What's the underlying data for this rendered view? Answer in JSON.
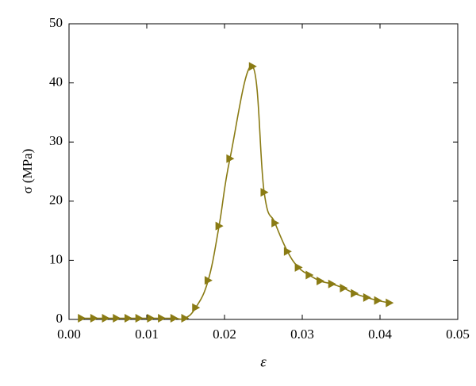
{
  "chart_data": {
    "type": "line",
    "xlabel": "ε",
    "ylabel": "σ (MPa)",
    "x": [
      0.0016,
      0.0032,
      0.0047,
      0.0061,
      0.0076,
      0.009,
      0.0105,
      0.0119,
      0.0135,
      0.0149,
      0.0163,
      0.0179,
      0.0193,
      0.0207,
      0.0236,
      0.0251,
      0.0265,
      0.0281,
      0.0295,
      0.0309,
      0.0323,
      0.0338,
      0.0353,
      0.0367,
      0.0383,
      0.0397,
      0.0412
    ],
    "series": [
      {
        "color": "#8a7b14",
        "values": [
          0.2,
          0.2,
          0.2,
          0.2,
          0.2,
          0.2,
          0.2,
          0.2,
          0.2,
          0.2,
          2.0,
          6.6,
          15.8,
          27.2,
          42.8,
          21.5,
          16.3,
          11.5,
          8.8,
          7.5,
          6.5,
          6.0,
          5.3,
          4.4,
          3.7,
          3.2,
          2.8
        ]
      }
    ],
    "xlim": [
      0,
      0.05
    ],
    "xticks": [
      {
        "value": 0,
        "label": "0.00"
      },
      {
        "value": 0.01,
        "label": "0.01"
      },
      {
        "value": 0.02,
        "label": "0.02"
      },
      {
        "value": 0.03,
        "label": "0.03"
      },
      {
        "value": 0.04,
        "label": "0.04"
      },
      {
        "value": 0.05,
        "label": "0.05"
      }
    ],
    "ylim": [
      0,
      50
    ],
    "yticks": [
      0,
      10,
      20,
      30,
      40,
      50
    ],
    "marker": "triangle-right"
  }
}
